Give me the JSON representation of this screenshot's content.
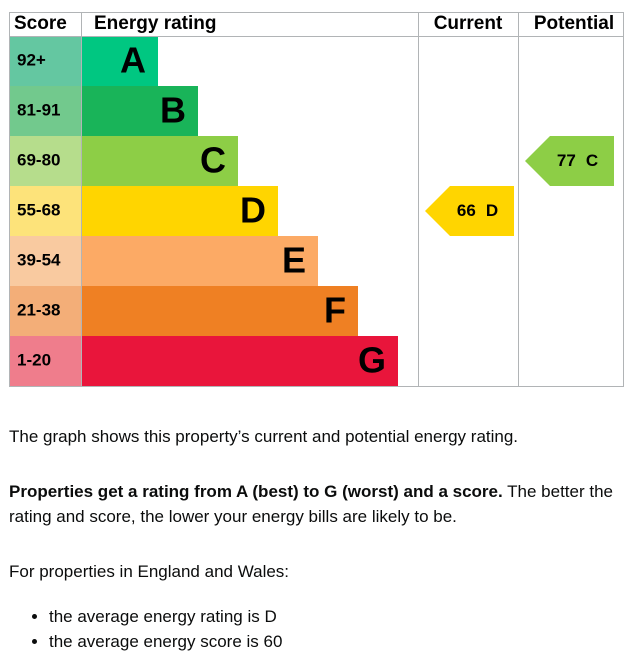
{
  "chart_data": {
    "type": "epc",
    "headers": [
      "Score",
      "Energy rating",
      "Current",
      "Potential"
    ],
    "bands": [
      {
        "range": "92+",
        "letter": "A",
        "color": "#00c781",
        "score_color": "#64c7a1"
      },
      {
        "range": "81-91",
        "letter": "B",
        "color": "#19b459",
        "score_color": "#72c98d"
      },
      {
        "range": "69-80",
        "letter": "C",
        "color": "#8dce46",
        "score_color": "#b6dd8c"
      },
      {
        "range": "55-68",
        "letter": "D",
        "color": "#ffd500",
        "score_color": "#fde37a"
      },
      {
        "range": "39-54",
        "letter": "E",
        "color": "#fcaa65",
        "score_color": "#f9caa0"
      },
      {
        "range": "21-38",
        "letter": "F",
        "color": "#ef8023",
        "score_color": "#f3ae78"
      },
      {
        "range": "1-20",
        "letter": "G",
        "color": "#e9153b",
        "score_color": "#ef7d8c"
      }
    ],
    "current": {
      "value": 66,
      "letter": "D"
    },
    "potential": {
      "value": 77,
      "letter": "C"
    }
  },
  "text": {
    "intro": "The graph shows this property’s current and potential energy rating.",
    "rating_bold": "Properties get a rating from A (best) to G (worst) and a score.",
    "rating_rest": "The better the rating and score, the lower your energy bills are likely to be.",
    "region": "For properties in England and Wales:",
    "bullets": [
      "the average energy rating is D",
      "the average energy score is 60"
    ]
  }
}
